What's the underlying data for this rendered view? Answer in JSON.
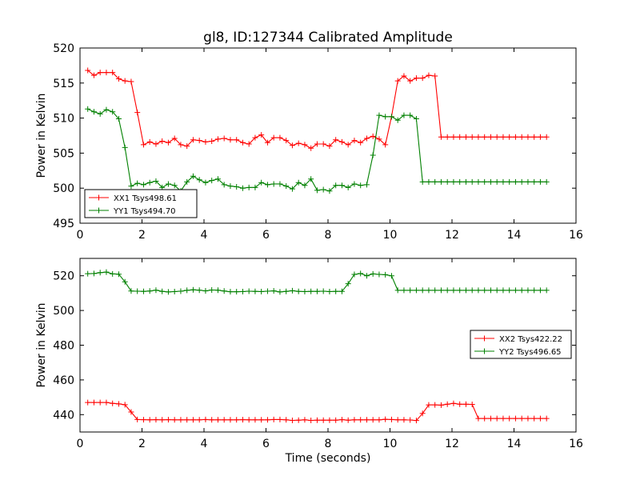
{
  "figure": {
    "title": "gl8, ID:127344 Calibrated Amplitude",
    "xlabel": "Time (seconds)"
  },
  "chart_data": [
    {
      "type": "line",
      "ylabel": "Power in Kelvin",
      "xlim": [
        0,
        16
      ],
      "ylim": [
        495,
        520
      ],
      "xticks": [
        0,
        2,
        4,
        6,
        8,
        10,
        12,
        14,
        16
      ],
      "yticks": [
        495,
        500,
        505,
        510,
        515,
        520
      ],
      "grid": false,
      "legend_position": "lower-left",
      "x": [
        0.25,
        0.45,
        0.65,
        0.85,
        1.05,
        1.25,
        1.45,
        1.65,
        1.85,
        2.05,
        2.25,
        2.45,
        2.65,
        2.85,
        3.05,
        3.25,
        3.45,
        3.65,
        3.85,
        4.05,
        4.25,
        4.45,
        4.65,
        4.85,
        5.05,
        5.25,
        5.45,
        5.65,
        5.85,
        6.05,
        6.25,
        6.45,
        6.65,
        6.85,
        7.05,
        7.25,
        7.45,
        7.65,
        7.85,
        8.05,
        8.25,
        8.45,
        8.65,
        8.85,
        9.05,
        9.25,
        9.45,
        9.65,
        9.85,
        10.05,
        10.25,
        10.45,
        10.65,
        10.85,
        11.05,
        11.25,
        11.45,
        11.65,
        11.85,
        12.05,
        12.25,
        12.45,
        12.65,
        12.85,
        13.05,
        13.25,
        13.45,
        13.65,
        13.85,
        14.05,
        14.25,
        14.45,
        14.65,
        14.85,
        15.05
      ],
      "series": [
        {
          "name": "XX1 Tsys498.61",
          "color": "#ff0000",
          "values": [
            516.8,
            516.1,
            516.5,
            516.5,
            516.5,
            515.6,
            515.3,
            515.2,
            510.8,
            506.2,
            506.6,
            506.3,
            506.7,
            506.5,
            507.1,
            506.2,
            506.0,
            506.9,
            506.8,
            506.6,
            506.7,
            507.0,
            507.1,
            506.9,
            506.9,
            506.5,
            506.3,
            507.2,
            507.6,
            506.5,
            507.2,
            507.2,
            506.8,
            506.1,
            506.4,
            506.2,
            505.7,
            506.3,
            506.3,
            506.0,
            506.9,
            506.6,
            506.2,
            506.8,
            506.5,
            507.1,
            507.4,
            507.0,
            506.2,
            510.2,
            515.3,
            516.0,
            515.3,
            515.7,
            515.7,
            516.1,
            516.0,
            507.3,
            507.3,
            507.3,
            507.3,
            507.3,
            507.3,
            507.3,
            507.3,
            507.3,
            507.3,
            507.3,
            507.3,
            507.3,
            507.3,
            507.3,
            507.3,
            507.3,
            507.3
          ]
        },
        {
          "name": "YY1 Tsys494.70",
          "color": "#008000",
          "values": [
            511.3,
            510.9,
            510.6,
            511.2,
            510.9,
            509.9,
            505.8,
            500.3,
            500.7,
            500.5,
            500.8,
            501.0,
            500.1,
            500.6,
            500.4,
            499.6,
            500.9,
            501.7,
            501.2,
            500.8,
            501.1,
            501.3,
            500.5,
            500.3,
            500.2,
            500.0,
            500.1,
            500.1,
            500.8,
            500.5,
            500.6,
            500.6,
            500.3,
            499.9,
            500.8,
            500.4,
            501.3,
            499.7,
            499.8,
            499.6,
            500.4,
            500.4,
            500.1,
            500.6,
            500.4,
            500.5,
            504.7,
            510.4,
            510.2,
            510.2,
            509.7,
            510.4,
            510.4,
            509.9,
            500.9,
            500.9,
            500.9,
            500.9,
            500.9,
            500.9,
            500.9,
            500.9,
            500.9,
            500.9,
            500.9,
            500.9,
            500.9,
            500.9,
            500.9,
            500.9,
            500.9,
            500.9,
            500.9,
            500.9,
            500.9
          ]
        }
      ]
    },
    {
      "type": "line",
      "ylabel": "Power in Kelvin",
      "xlim": [
        0,
        16
      ],
      "ylim": [
        430,
        530
      ],
      "xticks": [
        0,
        2,
        4,
        6,
        8,
        10,
        12,
        14,
        16
      ],
      "yticks": [
        440,
        460,
        480,
        500,
        520
      ],
      "grid": false,
      "legend_position": "right",
      "x": [
        0.25,
        0.45,
        0.65,
        0.85,
        1.05,
        1.25,
        1.45,
        1.65,
        1.85,
        2.05,
        2.25,
        2.45,
        2.65,
        2.85,
        3.05,
        3.25,
        3.45,
        3.65,
        3.85,
        4.05,
        4.25,
        4.45,
        4.65,
        4.85,
        5.05,
        5.25,
        5.45,
        5.65,
        5.85,
        6.05,
        6.25,
        6.45,
        6.65,
        6.85,
        7.05,
        7.25,
        7.45,
        7.65,
        7.85,
        8.05,
        8.25,
        8.45,
        8.65,
        8.85,
        9.05,
        9.25,
        9.45,
        9.65,
        9.85,
        10.05,
        10.25,
        10.45,
        10.65,
        10.85,
        11.05,
        11.25,
        11.45,
        11.65,
        11.85,
        12.05,
        12.25,
        12.45,
        12.65,
        12.85,
        13.05,
        13.25,
        13.45,
        13.65,
        13.85,
        14.05,
        14.25,
        14.45,
        14.65,
        14.85,
        15.05
      ],
      "series": [
        {
          "name": "XX2 Tsys422.22",
          "color": "#ff0000",
          "values": [
            447.0,
            447.0,
            447.0,
            447.0,
            446.5,
            446.2,
            445.7,
            441.5,
            437.2,
            437.1,
            437.0,
            437.1,
            437.0,
            437.1,
            437.0,
            437.0,
            437.0,
            437.0,
            437.0,
            437.2,
            437.0,
            437.0,
            437.0,
            437.0,
            437.0,
            437.1,
            437.0,
            437.0,
            437.0,
            437.0,
            437.2,
            437.2,
            437.0,
            436.7,
            436.8,
            437.0,
            436.7,
            436.8,
            436.8,
            436.8,
            436.8,
            437.1,
            436.8,
            437.0,
            437.0,
            437.0,
            437.0,
            437.0,
            437.3,
            437.2,
            437.0,
            437.0,
            436.9,
            436.6,
            440.7,
            445.6,
            445.6,
            445.5,
            446.0,
            446.5,
            446.0,
            446.0,
            445.9,
            437.8,
            437.8,
            437.8,
            437.8,
            437.8,
            437.8,
            437.8,
            437.8,
            437.8,
            437.8,
            437.8,
            437.8
          ]
        },
        {
          "name": "YY2 Tsys496.65",
          "color": "#008000",
          "values": [
            521.2,
            521.3,
            521.8,
            522.1,
            521.1,
            520.9,
            516.5,
            511.2,
            511.1,
            511.0,
            511.2,
            511.7,
            511.0,
            510.7,
            510.9,
            511.1,
            511.6,
            511.9,
            511.7,
            511.3,
            511.8,
            511.7,
            511.2,
            510.8,
            510.8,
            510.9,
            511.1,
            511.0,
            510.9,
            511.1,
            511.3,
            510.7,
            511.0,
            511.4,
            511.0,
            510.9,
            511.0,
            511.0,
            511.1,
            510.9,
            511.0,
            511.0,
            515.4,
            520.8,
            521.3,
            520.0,
            521.1,
            520.8,
            520.6,
            520.0,
            511.6,
            511.6,
            511.6,
            511.6,
            511.6,
            511.6,
            511.6,
            511.6,
            511.6,
            511.6,
            511.6,
            511.6,
            511.6,
            511.6,
            511.6,
            511.6,
            511.6,
            511.6,
            511.6,
            511.6,
            511.6,
            511.6,
            511.6,
            511.6,
            511.6
          ]
        }
      ]
    }
  ]
}
